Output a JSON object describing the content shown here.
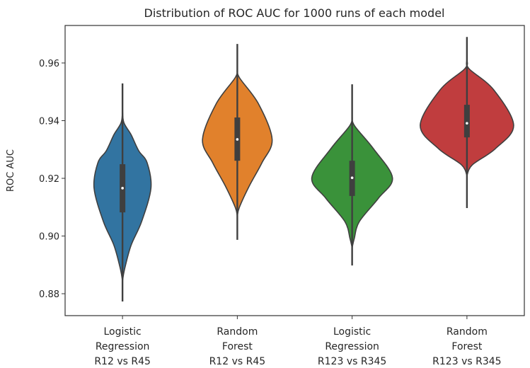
{
  "chart_data": {
    "type": "violin",
    "title": "Distribution of ROC AUC for 1000 runs of each model",
    "xlabel": "",
    "ylabel": "ROC AUC",
    "ylim": [
      0.8724,
      0.973
    ],
    "yticks": [
      0.88,
      0.9,
      0.92,
      0.94,
      0.96
    ],
    "ytick_labels": [
      "0.88",
      "0.90",
      "0.92",
      "0.94",
      "0.96"
    ],
    "grid": false,
    "categories": [
      [
        "Logistic",
        "Regression",
        "R12 vs R45"
      ],
      [
        "Random",
        "Forest",
        "R12 vs R45"
      ],
      [
        "Logistic",
        "Regression",
        "R123 vs R345"
      ],
      [
        "Random",
        "Forest",
        "R123 vs R345"
      ]
    ],
    "series": [
      {
        "name": "Logistic Regression R12 vs R45",
        "color": "#3274a1",
        "min": 0.8773,
        "q1": 0.9082,
        "median": 0.9166,
        "q3": 0.9249,
        "max": 0.9529,
        "density": [
          [
            0.8845,
            0
          ],
          [
            0.8886,
            0.05
          ],
          [
            0.8967,
            0.2
          ],
          [
            0.905,
            0.45
          ],
          [
            0.9166,
            0.67
          ],
          [
            0.9254,
            0.58
          ],
          [
            0.9296,
            0.38
          ],
          [
            0.9352,
            0.2
          ],
          [
            0.9394,
            0.03
          ],
          [
            0.944,
            0
          ]
        ]
      },
      {
        "name": "Random Forest R12 vs R45",
        "color": "#e1812c",
        "min": 0.8987,
        "q1": 0.9261,
        "median": 0.9335,
        "q3": 0.9411,
        "max": 0.9666,
        "density": [
          [
            0.907,
            0
          ],
          [
            0.91,
            0.05
          ],
          [
            0.9173,
            0.28
          ],
          [
            0.9254,
            0.58
          ],
          [
            0.9335,
            0.82
          ],
          [
            0.9458,
            0.5
          ],
          [
            0.9549,
            0.05
          ],
          [
            0.958,
            0
          ]
        ]
      },
      {
        "name": "Logistic Regression R123 vs R345",
        "color": "#3a923a",
        "min": 0.8898,
        "q1": 0.9139,
        "median": 0.9202,
        "q3": 0.9261,
        "max": 0.9526,
        "density": [
          [
            0.896,
            0
          ],
          [
            0.8991,
            0.05
          ],
          [
            0.905,
            0.17
          ],
          [
            0.9131,
            0.62
          ],
          [
            0.9202,
            0.95
          ],
          [
            0.9303,
            0.5
          ],
          [
            0.9384,
            0.05
          ],
          [
            0.942,
            0
          ]
        ]
      },
      {
        "name": "Random Forest R123 vs R345",
        "color": "#c03d3e",
        "min": 0.9097,
        "q1": 0.9342,
        "median": 0.9391,
        "q3": 0.9455,
        "max": 0.969,
        "density": [
          [
            0.921,
            0
          ],
          [
            0.9247,
            0.13
          ],
          [
            0.9303,
            0.67
          ],
          [
            0.9384,
            1.1
          ],
          [
            0.9507,
            0.63
          ],
          [
            0.958,
            0.05
          ],
          [
            0.961,
            0
          ]
        ]
      }
    ]
  }
}
